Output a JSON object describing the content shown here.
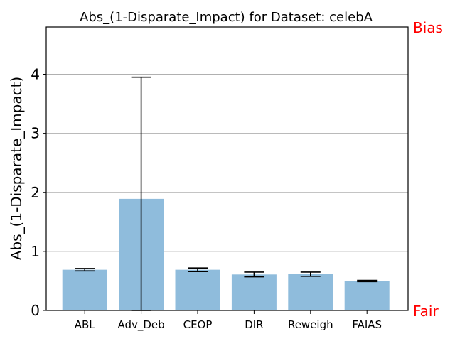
{
  "chart_data": {
    "type": "bar",
    "title": "Abs_(1-Disparate_Impact) for Dataset: celebA",
    "xlabel": "",
    "ylabel": "Abs_(1-Disparate_Impact)",
    "categories": [
      "ABL",
      "Adv_Deb",
      "CEOP",
      "DIR",
      "Reweigh",
      "FAIAS"
    ],
    "values": [
      0.69,
      1.89,
      0.69,
      0.61,
      0.62,
      0.5
    ],
    "error_low": [
      0.67,
      0.0,
      0.66,
      0.57,
      0.58,
      0.49
    ],
    "error_high": [
      0.71,
      3.95,
      0.72,
      0.65,
      0.65,
      0.51
    ],
    "ylim": [
      0,
      4.8
    ],
    "yticks": [
      0,
      1,
      2,
      3,
      4
    ],
    "grid": "horizontal",
    "bar_color": "#8fbcdc",
    "error_color": "#000000",
    "right_labels": {
      "top": "Bias",
      "bottom": "Fair",
      "color": "#ff0000"
    }
  }
}
